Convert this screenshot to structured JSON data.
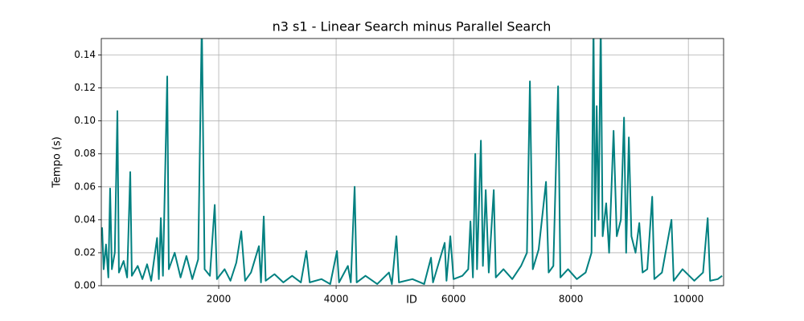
{
  "chart_data": {
    "type": "line",
    "title": "n3 s1 - Linear Search minus Parallel Search",
    "x_label": "ID",
    "y_label": "Tempo (s)",
    "color": "#008080",
    "grid": true,
    "xlim": [
      0,
      10600
    ],
    "ylim": [
      0,
      0.15
    ],
    "xticks": [
      2000,
      4000,
      6000,
      8000,
      10000
    ],
    "yticks": [
      {
        "value": 0,
        "label": "0.00"
      },
      {
        "value": 0.02,
        "label": "0.02"
      },
      {
        "value": 0.04,
        "label": "0.04"
      },
      {
        "value": 0.06,
        "label": "0.06"
      },
      {
        "value": 0.08,
        "label": "0.08"
      },
      {
        "value": 0.1,
        "label": "0.10"
      },
      {
        "value": 0.12,
        "label": "0.12"
      },
      {
        "value": 0.14,
        "label": "0.14"
      }
    ],
    "x": [
      0,
      14,
      40,
      80,
      120,
      150,
      180,
      230,
      274,
      300,
      380,
      440,
      493,
      520,
      620,
      700,
      780,
      850,
      950,
      980,
      1014,
      1050,
      1123,
      1150,
      1250,
      1350,
      1450,
      1550,
      1650,
      1712,
      1760,
      1850,
      1932,
      1970,
      2100,
      2200,
      2300,
      2384,
      2450,
      2550,
      2685,
      2720,
      2767,
      2800,
      2950,
      3100,
      3250,
      3400,
      3493,
      3550,
      3750,
      3900,
      4014,
      4050,
      4200,
      4250,
      4315,
      4350,
      4500,
      4700,
      4900,
      4950,
      5027,
      5070,
      5300,
      5500,
      5616,
      5650,
      5849,
      5880,
      5945,
      6000,
      6150,
      6250,
      6288,
      6330,
      6370,
      6400,
      6466,
      6500,
      6548,
      6600,
      6685,
      6720,
      6850,
      7000,
      7150,
      7250,
      7301,
      7350,
      7450,
      7575,
      7620,
      7700,
      7781,
      7820,
      7950,
      8100,
      8250,
      8350,
      8384,
      8410,
      8438,
      8470,
      8507,
      8540,
      8600,
      8650,
      8726,
      8780,
      8850,
      8904,
      8940,
      8986,
      9030,
      9100,
      9164,
      9220,
      9300,
      9384,
      9420,
      9550,
      9712,
      9750,
      9900,
      10100,
      10250,
      10329,
      10370,
      10500,
      10575
    ],
    "values": [
      0.03,
      0.035,
      0.01,
      0.025,
      0.005,
      0.059,
      0.01,
      0.02,
      0.106,
      0.008,
      0.015,
      0.005,
      0.069,
      0.006,
      0.012,
      0.004,
      0.013,
      0.003,
      0.029,
      0.004,
      0.041,
      0.006,
      0.127,
      0.01,
      0.02,
      0.005,
      0.018,
      0.004,
      0.016,
      0.16,
      0.01,
      0.006,
      0.049,
      0.004,
      0.01,
      0.003,
      0.014,
      0.033,
      0.003,
      0.008,
      0.024,
      0.002,
      0.042,
      0.003,
      0.007,
      0.002,
      0.006,
      0.002,
      0.021,
      0.002,
      0.004,
      0.001,
      0.021,
      0.002,
      0.012,
      0.002,
      0.06,
      0.002,
      0.006,
      0.001,
      0.008,
      0.001,
      0.03,
      0.002,
      0.004,
      0.001,
      0.017,
      0.002,
      0.026,
      0.003,
      0.03,
      0.004,
      0.006,
      0.01,
      0.039,
      0.005,
      0.08,
      0.01,
      0.088,
      0.012,
      0.058,
      0.008,
      0.058,
      0.005,
      0.01,
      0.004,
      0.012,
      0.02,
      0.124,
      0.01,
      0.022,
      0.063,
      0.008,
      0.012,
      0.121,
      0.005,
      0.01,
      0.004,
      0.008,
      0.02,
      0.16,
      0.03,
      0.109,
      0.04,
      0.16,
      0.03,
      0.05,
      0.02,
      0.094,
      0.03,
      0.04,
      0.102,
      0.02,
      0.09,
      0.03,
      0.02,
      0.038,
      0.008,
      0.01,
      0.054,
      0.004,
      0.008,
      0.04,
      0.003,
      0.01,
      0.003,
      0.008,
      0.041,
      0.003,
      0.004,
      0.006
    ]
  }
}
